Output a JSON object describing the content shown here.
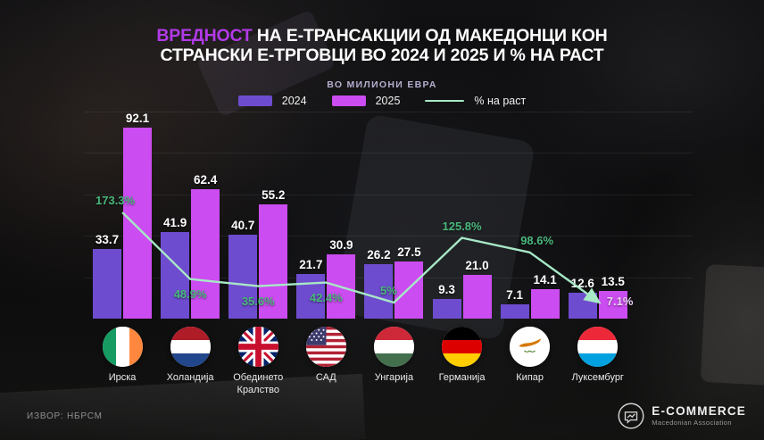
{
  "header": {
    "title_accent": "ВРЕДНОСТ",
    "title_line1": "НА Е-ТРАНСАКЦИИ ОД МАКЕДОНЦИ КОН",
    "title_line2": "СТРАНСКИ Е-ТРГОВЦИ ВО 2024 И 2025 И % НА РАСТ",
    "subtitle": "ВО МИЛИОНИ ЕВРА"
  },
  "legend": {
    "items": [
      {
        "label": "2024",
        "color": "#6e4ccf",
        "type": "swatch"
      },
      {
        "label": "2025",
        "color": "#cb4cf0",
        "type": "swatch"
      },
      {
        "label": "% на раст",
        "color": "#a7e8c6",
        "type": "line"
      }
    ]
  },
  "chart_data": {
    "type": "bar",
    "title": "ВРЕДНОСТ НА Е-ТРАНСАКЦИИ ОД МАКЕДОНЦИ КОН СТРАНСКИ Е-ТРГОВЦИ ВО 2024 И 2025 И % НА РАСТ",
    "subtitle": "ВО МИЛИОНИ ЕВРА",
    "unit": "милиони евра",
    "categories": [
      "Ирска",
      "Холандија",
      "Обединето Кралство",
      "САД",
      "Унгарија",
      "Германија",
      "Кипар",
      "Луксембург"
    ],
    "flags": [
      "ireland",
      "netherlands",
      "united-kingdom",
      "usa",
      "hungary",
      "germany",
      "cyprus",
      "luxembourg"
    ],
    "series": [
      {
        "name": "2024",
        "color": "#6e4ccf",
        "values": [
          33.7,
          41.9,
          40.7,
          21.7,
          26.2,
          9.3,
          7.1,
          12.6
        ],
        "labels": [
          "33.7",
          "41.9",
          "40.7",
          "21.7",
          "26.2",
          "9.3",
          "7.1",
          "12.6"
        ]
      },
      {
        "name": "2025",
        "color": "#cb4cf0",
        "values": [
          92.1,
          62.4,
          55.2,
          30.9,
          27.5,
          21.0,
          14.1,
          13.5
        ],
        "labels": [
          "92.1",
          "62.4",
          "55.2",
          "30.9",
          "27.5",
          "21.0",
          "14.1",
          "13.5"
        ]
      }
    ],
    "growth": {
      "name": "% на раст",
      "color": "#a7e8c6",
      "values": [
        173.3,
        48.9,
        35.6,
        42.4,
        5,
        125.8,
        98.6,
        7.1
      ],
      "labels": [
        "173.3%",
        "48.9%",
        "35.6%",
        "42.4%",
        "5%",
        "125.8%",
        "98.6%",
        "7.1%"
      ],
      "label_placements": [
        {
          "pos": "above",
          "dx": -8
        },
        {
          "pos": "below",
          "dx": 0
        },
        {
          "pos": "below",
          "dx": 0
        },
        {
          "pos": "below",
          "dx": 0
        },
        {
          "pos": "above",
          "dx": -6
        },
        {
          "pos": "above",
          "dx": 0
        },
        {
          "pos": "above",
          "dx": 8
        },
        {
          "pos": "right",
          "dx": 10
        }
      ],
      "label_colors": [
        "#49b87c",
        "#49b87c",
        "#49b87c",
        "#49b87c",
        "#49b87c",
        "#49b87c",
        "#49b87c",
        "#eed2f6"
      ]
    },
    "ylim": [
      0,
      100
    ],
    "gridlines": [
      20,
      40,
      60,
      80,
      100
    ],
    "legend_position": "top",
    "grid": true
  },
  "footer": {
    "source": "ИЗВОР: НБРСМ",
    "brand_name": "E-COMMERCE",
    "brand_subtitle": "Macedonian Association"
  },
  "colors": {
    "title_accent": "#b23ae8",
    "background": "#0c0c0e"
  }
}
